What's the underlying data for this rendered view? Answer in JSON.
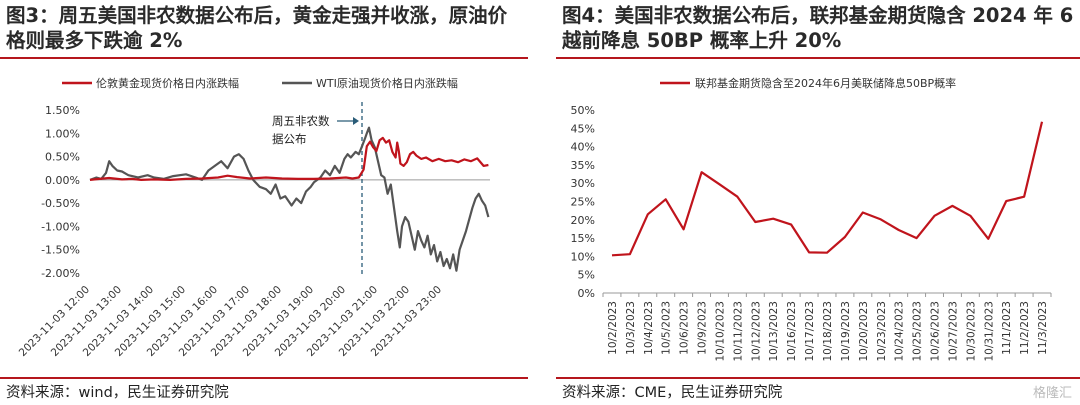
{
  "panels": [
    {
      "title": "图3：周五美国非农数据公布后，黄金走强并收涨，原油价格则最多下跌逾 2%",
      "source": "资料来源：wind，民生证券研究院"
    },
    {
      "title": "图4：美国非农数据公布后，联邦基金期货隐含 2024 年 6 越前降息 50BP 概率上升 20%",
      "source": "资料来源：CME，民生证券研究院"
    }
  ],
  "watermark": "格隆汇",
  "chart_data": [
    {
      "type": "line",
      "ylim": [
        -2.0,
        1.5
      ],
      "yticks": [
        "1.50%",
        "1.00%",
        "0.50%",
        "0.00%",
        "-0.50%",
        "-1.00%",
        "-1.50%",
        "-2.00%"
      ],
      "ytick_values": [
        1.5,
        1.0,
        0.5,
        0.0,
        -0.5,
        -1.0,
        -1.5,
        -2.0
      ],
      "xlim": [
        12,
        24.5
      ],
      "xticks": [
        "2023-11-03 12:00",
        "2023-11-03 13:00",
        "2023-11-03 14:00",
        "2023-11-03 15:00",
        "2023-11-03 16:00",
        "2023-11-03 17:00",
        "2023-11-03 18:00",
        "2023-11-03 19:00",
        "2023-11-03 20:00",
        "2023-11-03 21:00",
        "2023-11-03 22:00",
        "2023-11-03 23:00"
      ],
      "xtick_values": [
        12,
        13,
        14,
        15,
        16,
        17,
        18,
        19,
        20,
        21,
        22,
        23
      ],
      "annotation": {
        "text_line1": "周五非农数",
        "text_line2": "据公布",
        "x": 20.5
      },
      "series": [
        {
          "name": "伦敦黄金现货价格日内涨跌幅",
          "color": "#c0141c",
          "points": [
            [
              12.0,
              0.0
            ],
            [
              12.3,
              0.02
            ],
            [
              12.6,
              0.04
            ],
            [
              13.0,
              0.01
            ],
            [
              13.3,
              0.02
            ],
            [
              13.6,
              0.0
            ],
            [
              14.0,
              0.01
            ],
            [
              14.5,
              0.0
            ],
            [
              15.0,
              0.02
            ],
            [
              15.5,
              0.03
            ],
            [
              16.0,
              0.05
            ],
            [
              16.3,
              0.09
            ],
            [
              16.6,
              0.06
            ],
            [
              17.0,
              0.03
            ],
            [
              17.5,
              0.05
            ],
            [
              18.0,
              0.03
            ],
            [
              18.5,
              0.02
            ],
            [
              19.0,
              0.02
            ],
            [
              19.5,
              0.03
            ],
            [
              20.0,
              0.05
            ],
            [
              20.2,
              0.03
            ],
            [
              20.4,
              0.05
            ],
            [
              20.55,
              0.22
            ],
            [
              20.65,
              0.72
            ],
            [
              20.75,
              0.82
            ],
            [
              20.85,
              0.7
            ],
            [
              20.95,
              0.62
            ],
            [
              21.05,
              0.85
            ],
            [
              21.15,
              0.9
            ],
            [
              21.25,
              0.8
            ],
            [
              21.35,
              0.85
            ],
            [
              21.45,
              0.6
            ],
            [
              21.55,
              0.48
            ],
            [
              21.6,
              0.8
            ],
            [
              21.65,
              0.62
            ],
            [
              21.7,
              0.35
            ],
            [
              21.8,
              0.3
            ],
            [
              21.9,
              0.38
            ],
            [
              22.0,
              0.55
            ],
            [
              22.1,
              0.6
            ],
            [
              22.2,
              0.52
            ],
            [
              22.35,
              0.45
            ],
            [
              22.5,
              0.48
            ],
            [
              22.7,
              0.4
            ],
            [
              22.9,
              0.45
            ],
            [
              23.1,
              0.4
            ],
            [
              23.3,
              0.42
            ],
            [
              23.5,
              0.38
            ],
            [
              23.7,
              0.44
            ],
            [
              23.9,
              0.4
            ],
            [
              24.1,
              0.46
            ],
            [
              24.3,
              0.3
            ],
            [
              24.45,
              0.32
            ]
          ]
        },
        {
          "name": "WTI原油现货价格日内涨跌幅",
          "color": "#555555",
          "points": [
            [
              12.0,
              0.0
            ],
            [
              12.2,
              0.05
            ],
            [
              12.35,
              0.02
            ],
            [
              12.5,
              0.15
            ],
            [
              12.6,
              0.4
            ],
            [
              12.7,
              0.3
            ],
            [
              12.85,
              0.2
            ],
            [
              13.0,
              0.18
            ],
            [
              13.2,
              0.1
            ],
            [
              13.5,
              0.05
            ],
            [
              13.8,
              0.1
            ],
            [
              14.0,
              0.05
            ],
            [
              14.3,
              0.02
            ],
            [
              14.6,
              0.08
            ],
            [
              15.0,
              0.12
            ],
            [
              15.3,
              0.05
            ],
            [
              15.5,
              0.0
            ],
            [
              15.7,
              0.2
            ],
            [
              15.9,
              0.3
            ],
            [
              16.1,
              0.4
            ],
            [
              16.3,
              0.25
            ],
            [
              16.5,
              0.5
            ],
            [
              16.65,
              0.55
            ],
            [
              16.8,
              0.45
            ],
            [
              16.95,
              0.2
            ],
            [
              17.1,
              0.0
            ],
            [
              17.3,
              -0.15
            ],
            [
              17.5,
              -0.2
            ],
            [
              17.65,
              -0.3
            ],
            [
              17.8,
              -0.1
            ],
            [
              17.95,
              -0.4
            ],
            [
              18.1,
              -0.35
            ],
            [
              18.3,
              -0.55
            ],
            [
              18.45,
              -0.4
            ],
            [
              18.6,
              -0.5
            ],
            [
              18.75,
              -0.25
            ],
            [
              18.9,
              -0.15
            ],
            [
              19.0,
              -0.05
            ],
            [
              19.2,
              0.05
            ],
            [
              19.35,
              0.2
            ],
            [
              19.5,
              0.1
            ],
            [
              19.65,
              0.3
            ],
            [
              19.8,
              0.15
            ],
            [
              19.95,
              0.45
            ],
            [
              20.05,
              0.55
            ],
            [
              20.15,
              0.48
            ],
            [
              20.3,
              0.6
            ],
            [
              20.4,
              0.55
            ],
            [
              20.5,
              0.72
            ],
            [
              20.6,
              0.9
            ],
            [
              20.65,
              1.0
            ],
            [
              20.72,
              1.12
            ],
            [
              20.8,
              0.85
            ],
            [
              20.9,
              0.7
            ],
            [
              21.0,
              0.4
            ],
            [
              21.1,
              0.1
            ],
            [
              21.2,
              0.05
            ],
            [
              21.3,
              -0.3
            ],
            [
              21.4,
              -0.1
            ],
            [
              21.5,
              -0.6
            ],
            [
              21.6,
              -1.1
            ],
            [
              21.68,
              -1.45
            ],
            [
              21.75,
              -1.0
            ],
            [
              21.85,
              -0.8
            ],
            [
              21.95,
              -0.9
            ],
            [
              22.05,
              -1.2
            ],
            [
              22.15,
              -1.5
            ],
            [
              22.25,
              -1.1
            ],
            [
              22.35,
              -1.3
            ],
            [
              22.45,
              -1.45
            ],
            [
              22.55,
              -1.2
            ],
            [
              22.65,
              -1.6
            ],
            [
              22.75,
              -1.4
            ],
            [
              22.85,
              -1.75
            ],
            [
              22.95,
              -1.55
            ],
            [
              23.05,
              -1.85
            ],
            [
              23.15,
              -1.7
            ],
            [
              23.25,
              -1.9
            ],
            [
              23.35,
              -1.6
            ],
            [
              23.45,
              -1.95
            ],
            [
              23.55,
              -1.5
            ],
            [
              23.65,
              -1.3
            ],
            [
              23.75,
              -1.1
            ],
            [
              23.85,
              -0.85
            ],
            [
              23.95,
              -0.6
            ],
            [
              24.05,
              -0.4
            ],
            [
              24.15,
              -0.3
            ],
            [
              24.25,
              -0.45
            ],
            [
              24.35,
              -0.55
            ],
            [
              24.45,
              -0.8
            ]
          ]
        }
      ]
    },
    {
      "type": "line",
      "categories": [
        "10/2/2023",
        "10/3/2023",
        "10/4/2023",
        "10/5/2023",
        "10/6/2023",
        "10/9/2023",
        "10/10/2023",
        "10/11/2023",
        "10/12/2023",
        "10/13/2023",
        "10/16/2023",
        "10/17/2023",
        "10/18/2023",
        "10/19/2023",
        "10/20/2023",
        "10/23/2023",
        "10/24/2023",
        "10/25/2023",
        "10/26/2023",
        "10/27/2023",
        "10/30/2023",
        "10/31/2023",
        "11/1/2023",
        "11/2/2023",
        "11/3/2023"
      ],
      "ylim": [
        0,
        50
      ],
      "yticks": [
        "50%",
        "45%",
        "40%",
        "35%",
        "30%",
        "25%",
        "20%",
        "15%",
        "10%",
        "5%",
        "0%"
      ],
      "ytick_values": [
        50,
        45,
        40,
        35,
        30,
        25,
        20,
        15,
        10,
        5,
        0
      ],
      "series": [
        {
          "name": "联邦基金期货隐含至2024年6月美联储降息50BP概率",
          "color": "#c0141c",
          "values": [
            10.3,
            10.6,
            21.5,
            25.6,
            17.4,
            33.0,
            29.7,
            26.3,
            19.4,
            20.3,
            18.7,
            11.1,
            11.0,
            15.3,
            22.0,
            20.1,
            17.2,
            15.0,
            21.1,
            23.8,
            21.1,
            14.8,
            25.1,
            26.3,
            46.8
          ]
        }
      ]
    }
  ]
}
